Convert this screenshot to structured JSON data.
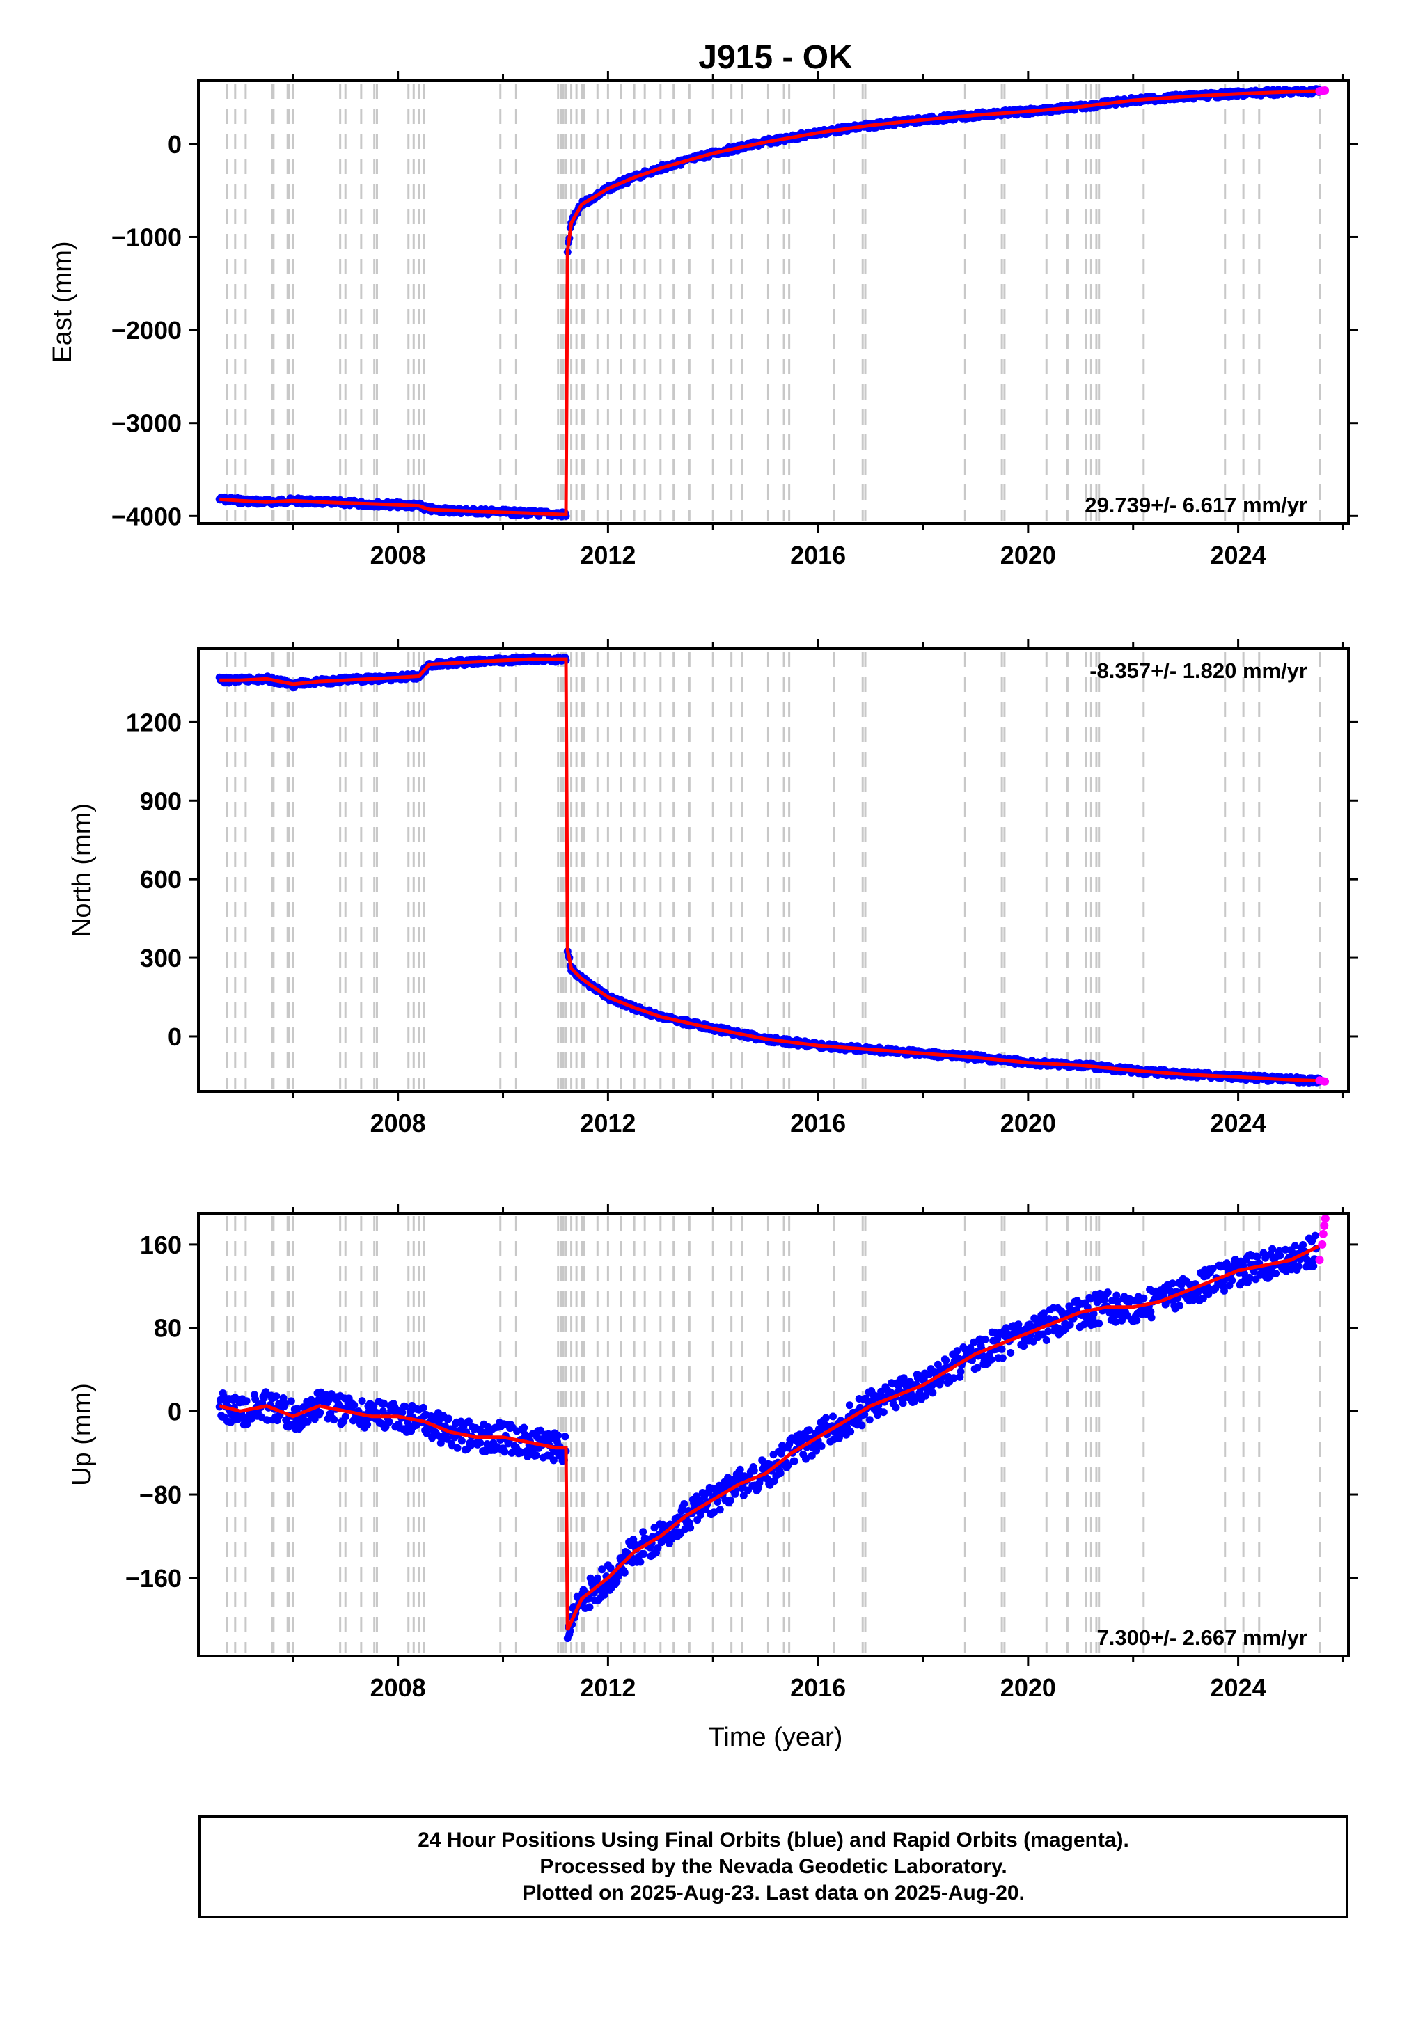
{
  "title": "J915 - OK",
  "xlabel": "Time (year)",
  "colors": {
    "final": "#0000ff",
    "rapid": "#ff00ff",
    "model": "#ff0000",
    "steps": "#c8c8c8",
    "frame": "#000000"
  },
  "chart_data": [
    {
      "type": "scatter",
      "name": "East",
      "ylabel": "East (mm)",
      "rate_label": "29.739+/- 6.617 mm/yr",
      "rate_position": "bottom-right",
      "xlim": [
        2004.2,
        2026.1
      ],
      "ylim": [
        -4080,
        680
      ],
      "xticks": [
        2008,
        2012,
        2016,
        2020,
        2024
      ],
      "yticks": [
        -4000,
        -3000,
        -2000,
        -1000,
        0
      ],
      "ytick_labels": [
        "−4000",
        "−3000",
        "−2000",
        "−1000",
        "0"
      ],
      "grid": false,
      "series": [
        {
          "name": "Final Orbits",
          "color": "#0000ff",
          "x": [
            2004.6,
            2005.0,
            2005.5,
            2006.0,
            2006.5,
            2007.0,
            2007.5,
            2008.0,
            2008.4,
            2008.6,
            2009.0,
            2009.5,
            2010.0,
            2010.5,
            2011.0,
            2011.2,
            2011.23,
            2011.3,
            2011.5,
            2012.0,
            2012.5,
            2013.0,
            2014.0,
            2015.0,
            2016.0,
            2017.0,
            2018.0,
            2019.0,
            2020.0,
            2021.0,
            2022.0,
            2023.0,
            2024.0,
            2025.0,
            2025.6
          ],
          "y": [
            -3820,
            -3835,
            -3850,
            -3835,
            -3850,
            -3860,
            -3870,
            -3880,
            -3890,
            -3930,
            -3940,
            -3950,
            -3960,
            -3970,
            -3980,
            -3985,
            -1150,
            -850,
            -650,
            -480,
            -360,
            -260,
            -100,
            20,
            120,
            200,
            260,
            310,
            350,
            400,
            470,
            510,
            540,
            560,
            570
          ]
        },
        {
          "name": "Rapid Orbits",
          "color": "#ff00ff",
          "x": [
            2025.55,
            2025.6,
            2025.65
          ],
          "y": [
            568,
            572,
            575
          ]
        },
        {
          "name": "Model",
          "color": "#ff0000",
          "x": [
            2004.6,
            2005.0,
            2005.5,
            2006.0,
            2006.5,
            2007.0,
            2007.5,
            2008.0,
            2008.4,
            2008.6,
            2009.0,
            2009.5,
            2010.0,
            2010.5,
            2011.0,
            2011.2,
            2011.23,
            2011.3,
            2011.5,
            2012.0,
            2012.5,
            2013.0,
            2014.0,
            2015.0,
            2016.0,
            2017.0,
            2018.0,
            2019.0,
            2020.0,
            2021.0,
            2022.0,
            2023.0,
            2024.0,
            2025.0,
            2025.6
          ],
          "y": [
            -3820,
            -3835,
            -3850,
            -3835,
            -3850,
            -3860,
            -3870,
            -3880,
            -3890,
            -3930,
            -3940,
            -3950,
            -3960,
            -3970,
            -3980,
            -3985,
            -1150,
            -850,
            -650,
            -480,
            -360,
            -260,
            -100,
            20,
            120,
            200,
            260,
            310,
            350,
            400,
            470,
            510,
            540,
            560,
            570
          ]
        }
      ]
    },
    {
      "type": "scatter",
      "name": "North",
      "ylabel": "North (mm)",
      "rate_label": "-8.357+/- 1.820 mm/yr",
      "rate_position": "top-right",
      "xlim": [
        2004.2,
        2026.1
      ],
      "ylim": [
        -210,
        1480
      ],
      "xticks": [
        2008,
        2012,
        2016,
        2020,
        2024
      ],
      "yticks": [
        0,
        300,
        600,
        900,
        1200
      ],
      "ytick_labels": [
        "0",
        "300",
        "600",
        "900",
        "1200"
      ],
      "grid": false,
      "series": [
        {
          "name": "Final Orbits",
          "color": "#0000ff",
          "x": [
            2004.6,
            2005.0,
            2005.5,
            2006.0,
            2006.5,
            2007.0,
            2007.5,
            2008.0,
            2008.4,
            2008.6,
            2009.0,
            2009.5,
            2010.0,
            2010.5,
            2011.0,
            2011.2,
            2011.23,
            2011.3,
            2011.5,
            2012.0,
            2012.5,
            2013.0,
            2014.0,
            2015.0,
            2016.0,
            2017.0,
            2018.0,
            2019.0,
            2020.0,
            2021.0,
            2022.0,
            2023.0,
            2024.0,
            2025.0,
            2025.6
          ],
          "y": [
            1360,
            1360,
            1365,
            1345,
            1355,
            1360,
            1365,
            1370,
            1375,
            1420,
            1425,
            1430,
            1435,
            1440,
            1440,
            1440,
            330,
            260,
            220,
            150,
            110,
            75,
            30,
            -10,
            -35,
            -50,
            -65,
            -80,
            -100,
            -110,
            -130,
            -145,
            -155,
            -165,
            -170
          ]
        },
        {
          "name": "Rapid Orbits",
          "color": "#ff00ff",
          "x": [
            2025.55,
            2025.6,
            2025.65
          ],
          "y": [
            -168,
            -170,
            -172
          ]
        },
        {
          "name": "Model",
          "color": "#ff0000",
          "x": [
            2004.6,
            2005.0,
            2005.5,
            2006.0,
            2006.5,
            2007.0,
            2007.5,
            2008.0,
            2008.4,
            2008.6,
            2009.0,
            2009.5,
            2010.0,
            2010.5,
            2011.0,
            2011.2,
            2011.23,
            2011.3,
            2011.5,
            2012.0,
            2012.5,
            2013.0,
            2014.0,
            2015.0,
            2016.0,
            2017.0,
            2018.0,
            2019.0,
            2020.0,
            2021.0,
            2022.0,
            2023.0,
            2024.0,
            2025.0,
            2025.6
          ],
          "y": [
            1360,
            1360,
            1365,
            1345,
            1355,
            1360,
            1365,
            1370,
            1375,
            1420,
            1425,
            1430,
            1435,
            1440,
            1440,
            1440,
            330,
            260,
            220,
            150,
            110,
            75,
            30,
            -10,
            -35,
            -50,
            -65,
            -80,
            -100,
            -110,
            -130,
            -145,
            -155,
            -165,
            -170
          ]
        }
      ]
    },
    {
      "type": "scatter",
      "name": "Up",
      "ylabel": "Up (mm)",
      "rate_label": "7.300+/- 2.667 mm/yr",
      "rate_position": "bottom-right",
      "xlim": [
        2004.2,
        2026.1
      ],
      "ylim": [
        -235,
        190
      ],
      "xticks": [
        2008,
        2012,
        2016,
        2020,
        2024
      ],
      "yticks": [
        -160,
        -80,
        0,
        80,
        160
      ],
      "ytick_labels": [
        "−160",
        "−80",
        "0",
        "80",
        "160"
      ],
      "grid": false,
      "series": [
        {
          "name": "Final Orbits",
          "color": "#0000ff",
          "x": [
            2004.6,
            2005.0,
            2005.5,
            2006.0,
            2006.5,
            2007.0,
            2007.5,
            2008.0,
            2008.5,
            2009.0,
            2009.5,
            2010.0,
            2010.5,
            2011.0,
            2011.2,
            2011.23,
            2011.5,
            2012.0,
            2012.5,
            2013.0,
            2013.5,
            2014.0,
            2014.5,
            2015.0,
            2015.5,
            2016.0,
            2016.5,
            2017.0,
            2017.5,
            2018.0,
            2018.5,
            2019.0,
            2019.5,
            2020.0,
            2020.5,
            2021.0,
            2021.5,
            2022.0,
            2022.5,
            2023.0,
            2023.5,
            2024.0,
            2024.5,
            2025.0,
            2025.5
          ],
          "y": [
            5,
            0,
            5,
            -5,
            5,
            0,
            -5,
            -5,
            -10,
            -20,
            -25,
            -25,
            -30,
            -35,
            -35,
            -210,
            -180,
            -160,
            -135,
            -120,
            -100,
            -85,
            -70,
            -60,
            -40,
            -25,
            -10,
            5,
            15,
            25,
            40,
            55,
            65,
            75,
            85,
            95,
            100,
            100,
            105,
            115,
            125,
            135,
            140,
            145,
            155
          ]
        },
        {
          "name": "Rapid Orbits",
          "color": "#ff00ff",
          "x": [
            2025.55,
            2025.6,
            2025.62,
            2025.64,
            2025.66
          ],
          "y": [
            145,
            160,
            170,
            178,
            185
          ]
        },
        {
          "name": "Model",
          "color": "#ff0000",
          "x": [
            2004.6,
            2005.0,
            2005.5,
            2006.0,
            2006.5,
            2007.0,
            2007.5,
            2008.0,
            2008.5,
            2009.0,
            2009.5,
            2010.0,
            2010.5,
            2011.0,
            2011.2,
            2011.23,
            2011.5,
            2012.0,
            2012.5,
            2013.0,
            2013.5,
            2014.0,
            2014.5,
            2015.0,
            2015.5,
            2016.0,
            2016.5,
            2017.0,
            2017.5,
            2018.0,
            2018.5,
            2019.0,
            2019.5,
            2020.0,
            2020.5,
            2021.0,
            2021.5,
            2022.0,
            2022.5,
            2023.0,
            2023.5,
            2024.0,
            2024.5,
            2025.0,
            2025.6
          ],
          "y": [
            5,
            0,
            5,
            -5,
            5,
            0,
            -5,
            -5,
            -10,
            -20,
            -25,
            -25,
            -30,
            -35,
            -35,
            -210,
            -180,
            -160,
            -135,
            -120,
            -100,
            -85,
            -70,
            -60,
            -40,
            -25,
            -10,
            5,
            15,
            25,
            40,
            55,
            65,
            75,
            85,
            95,
            100,
            100,
            105,
            115,
            125,
            135,
            140,
            145,
            160
          ]
        }
      ]
    }
  ],
  "steps": [
    2004.75,
    2004.9,
    2005.1,
    2005.6,
    2005.63,
    2005.9,
    2005.93,
    2006.0,
    2006.9,
    2007.0,
    2007.3,
    2007.55,
    2007.6,
    2008.2,
    2008.3,
    2008.4,
    2008.5,
    2009.95,
    2010.25,
    2011.05,
    2011.1,
    2011.15,
    2011.2,
    2011.3,
    2011.4,
    2011.5,
    2011.55,
    2011.8,
    2012.0,
    2012.25,
    2012.5,
    2012.7,
    2013.0,
    2013.25,
    2013.55,
    2014.0,
    2014.35,
    2014.55,
    2015.05,
    2015.35,
    2015.45,
    2016.3,
    2016.85,
    2016.9,
    2018.8,
    2019.5,
    2019.55,
    2020.35,
    2020.75,
    2021.1,
    2021.2,
    2021.3,
    2021.35,
    2022.2,
    2023.75,
    2024.1,
    2024.4,
    2025.55
  ],
  "footer": {
    "line1": "24 Hour Positions Using Final Orbits (blue) and Rapid Orbits (magenta).",
    "line2": "Processed by the Nevada Geodetic Laboratory.",
    "line3": "Plotted on 2025-Aug-23. Last data on 2025-Aug-20."
  }
}
